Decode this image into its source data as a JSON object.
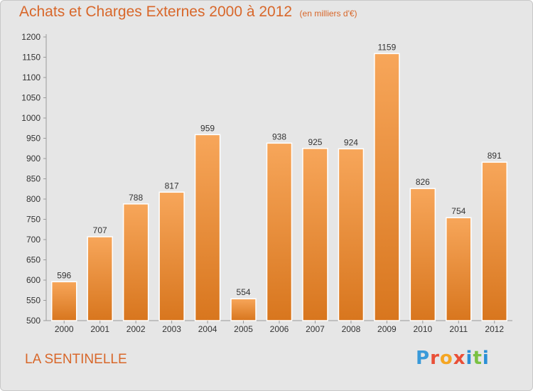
{
  "header": {
    "title": "Achats et Charges Externes 2000 à 2012",
    "subtitle": "(en milliers d'€)"
  },
  "footer": {
    "commune": "LA SENTINELLE",
    "brand": {
      "letters": [
        "P",
        "r",
        "o",
        "x",
        "i",
        "t",
        "i"
      ],
      "colors": [
        "#3a9ad9",
        "#e94f37",
        "#f5a623",
        "#e94f37",
        "#2a8fd6",
        "#7ac143",
        "#2a8fd6"
      ]
    }
  },
  "colors": {
    "bar_light": "#f7a65a",
    "bar_dark": "#d8761e",
    "background": "#e6e6e6",
    "title": "#d8672a"
  },
  "chart_data": {
    "type": "bar",
    "title": "Achats et Charges Externes 2000 à 2012",
    "subtitle": "(en milliers d'€)",
    "categories": [
      "2000",
      "2001",
      "2002",
      "2003",
      "2004",
      "2005",
      "2006",
      "2007",
      "2008",
      "2009",
      "2010",
      "2011",
      "2012"
    ],
    "values": [
      596,
      707,
      788,
      817,
      959,
      554,
      938,
      925,
      924,
      1159,
      826,
      754,
      891
    ],
    "data_labels": [
      "596",
      "707",
      "788",
      "817",
      "959",
      "554",
      "938",
      "925",
      "924",
      "1159",
      "826",
      "754",
      "891"
    ],
    "ylim": [
      500,
      1200
    ],
    "yticks": [
      "500",
      "550",
      "600",
      "650",
      "700",
      "750",
      "800",
      "850",
      "900",
      "950",
      "1000",
      "1050",
      "1100",
      "1150",
      "1200"
    ],
    "grid": false,
    "legend": "none"
  }
}
